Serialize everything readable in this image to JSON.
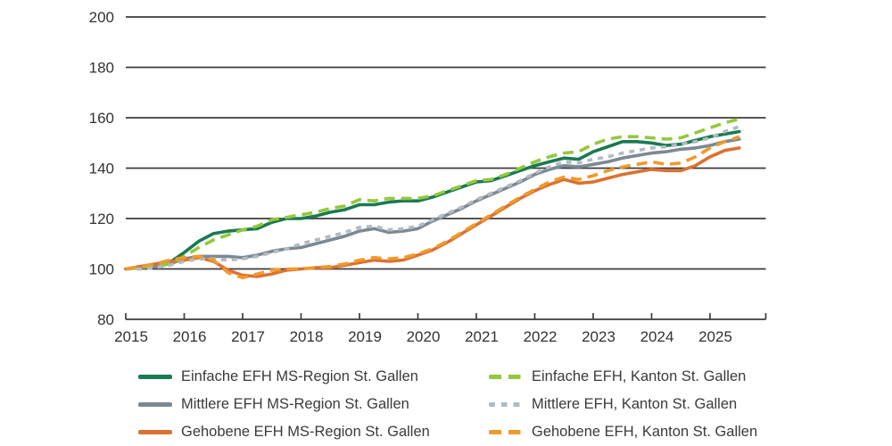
{
  "chart_data": {
    "type": "line",
    "title": "",
    "xlabel": "",
    "ylabel": "",
    "x_start": 2015,
    "x_step": 0.25,
    "x_ticks": [
      2015,
      2016,
      2017,
      2018,
      2019,
      2020,
      2021,
      2022,
      2023,
      2024,
      2025
    ],
    "y_ticks": [
      80,
      100,
      120,
      140,
      160,
      180,
      200
    ],
    "ylim": [
      80,
      200
    ],
    "xlim": [
      2015,
      2025.95
    ],
    "grid": "horizontal",
    "legend_position": "bottom",
    "axis_color": "#3c3c3c",
    "series": [
      {
        "label": "Einfache EFH MS-Region St. Gallen",
        "color": "#1a7a52",
        "dash": null,
        "values": [
          100,
          100.5,
          101.5,
          102.5,
          106.5,
          111,
          114,
          115,
          115.5,
          116,
          118.5,
          120,
          120,
          121,
          122.5,
          123.5,
          125.5,
          125.5,
          126.5,
          127,
          127,
          128.5,
          130.5,
          132.5,
          134.5,
          135,
          137,
          139,
          141,
          142.5,
          144,
          143.5,
          146.5,
          148.5,
          150.5,
          150.5,
          150,
          149,
          149.5,
          151,
          152.5,
          153.5,
          154.5
        ]
      },
      {
        "label": "Mittlere EFH MS-Region St. Gallen",
        "color": "#7c8994",
        "dash": null,
        "values": [
          100,
          100.5,
          101,
          102,
          104,
          105,
          105,
          105,
          104.5,
          105.5,
          107,
          108,
          108.5,
          110,
          111.5,
          113,
          115,
          116,
          114.5,
          115,
          116,
          119,
          121.5,
          124,
          127,
          129.5,
          132,
          134.5,
          137.5,
          139.5,
          141,
          140.5,
          141.5,
          142.5,
          144,
          145,
          146,
          146.5,
          147.5,
          148,
          149,
          150.5,
          151.5
        ]
      },
      {
        "label": "Gehobene EFH MS-Region St. Gallen",
        "color": "#dc7131",
        "dash": null,
        "values": [
          100,
          101,
          102,
          103,
          103.5,
          104.5,
          103,
          99.5,
          97.5,
          97,
          98,
          99.5,
          100,
          100.5,
          100.5,
          101.5,
          102.5,
          103.5,
          103,
          103.5,
          105.5,
          107.5,
          110.5,
          114,
          117.5,
          121,
          124.5,
          128,
          131,
          133.5,
          135.5,
          134,
          134.5,
          136,
          137.5,
          138.5,
          139.5,
          139,
          139,
          141,
          144.5,
          147,
          148
        ]
      },
      {
        "label": "Einfache EFH, Kanton St. Gallen",
        "color": "#93c83d",
        "dash": "12 7",
        "values": [
          100,
          100.5,
          101.5,
          102,
          105,
          108.5,
          111.5,
          113.5,
          115.5,
          117,
          119.5,
          120.5,
          121.5,
          122.5,
          124,
          125,
          127.5,
          127,
          128,
          128,
          128,
          129,
          131,
          133,
          135,
          135.5,
          137.5,
          140,
          142.5,
          144.5,
          146,
          146.5,
          149.5,
          151.5,
          152.5,
          152.5,
          152,
          151.5,
          152,
          154,
          156,
          158,
          159.5
        ]
      },
      {
        "label": "Mittlere EFH, Kanton St. Gallen",
        "color": "#b2bac3",
        "dash": "6 6",
        "values": [
          100,
          100,
          100.5,
          101.5,
          103,
          104,
          104,
          103.5,
          104,
          105,
          106.5,
          108,
          110,
          111.5,
          113,
          114.5,
          116.5,
          117,
          115.5,
          116,
          117,
          119.5,
          122,
          124.5,
          127.5,
          130,
          132.5,
          135,
          138,
          140.5,
          142.5,
          142,
          143.5,
          144.5,
          146,
          147,
          148,
          148.5,
          149.5,
          150.5,
          152,
          154.5,
          156.5
        ]
      },
      {
        "label": "Gehobene EFH, Kanton St. Gallen",
        "color": "#ef9a2b",
        "dash": "12 7",
        "values": [
          100,
          101,
          102,
          103.5,
          104.5,
          105,
          103.5,
          98.5,
          96.5,
          98,
          99.5,
          100,
          100,
          100.5,
          101,
          102,
          103.5,
          104.5,
          104,
          104.5,
          106,
          108,
          111,
          114.5,
          118,
          121.5,
          125,
          128.5,
          131.5,
          134.5,
          136.5,
          135.5,
          137,
          139,
          140.5,
          141.5,
          142.5,
          141.5,
          142,
          144.5,
          148,
          150.5,
          152.5
        ]
      }
    ]
  }
}
